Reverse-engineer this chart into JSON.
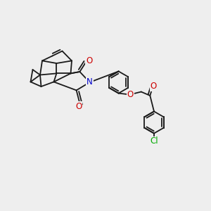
{
  "background_color": "#eeeeee",
  "bond_color": "#1a1a1a",
  "N_color": "#0000cc",
  "O_color": "#cc0000",
  "Cl_color": "#00aa00",
  "line_width": 1.3,
  "font_size": 8.5,
  "fig_size": [
    3.0,
    3.0
  ],
  "dpi": 100,
  "xlim": [
    0,
    10
  ],
  "ylim": [
    0,
    10
  ]
}
